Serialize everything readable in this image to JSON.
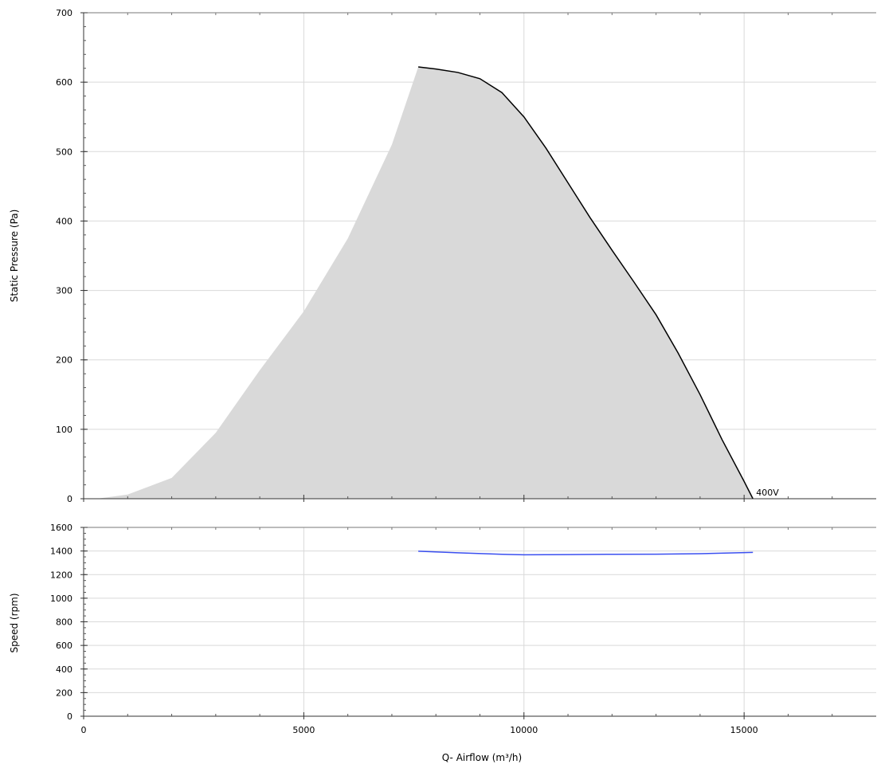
{
  "chart_data": [
    {
      "type": "area",
      "ylabel": "Static Pressure (Pa)",
      "xlabel": "",
      "xlim": [
        0,
        18000
      ],
      "ylim": [
        0,
        700
      ],
      "x_ticks": [
        0,
        5000,
        10000,
        15000
      ],
      "y_ticks": [
        0,
        100,
        200,
        300,
        400,
        500,
        600,
        700
      ],
      "grid": true,
      "colors": {
        "fill": "#d9d9d9",
        "curve": "#000000",
        "grid": "#d9d9d9"
      },
      "system_curve": {
        "x": [
          300,
          1000,
          2000,
          3000,
          4000,
          5000,
          6000,
          7000,
          7600
        ],
        "y": [
          0,
          6,
          30,
          95,
          185,
          270,
          375,
          510,
          622
        ]
      },
      "series": [
        {
          "name": "400V",
          "x": [
            7600,
            8000,
            8500,
            9000,
            9500,
            10000,
            10500,
            11000,
            11500,
            12000,
            12500,
            13000,
            13500,
            14000,
            14500,
            15000,
            15200
          ],
          "y": [
            622,
            619,
            614,
            605,
            585,
            550,
            505,
            455,
            405,
            358,
            312,
            265,
            210,
            150,
            85,
            25,
            0
          ]
        }
      ]
    },
    {
      "type": "line",
      "ylabel": "Speed (rpm)",
      "xlabel": "Q- Airflow (m³/h)",
      "xlim": [
        0,
        18000
      ],
      "ylim": [
        0,
        1600
      ],
      "x_ticks": [
        0,
        5000,
        10000,
        15000
      ],
      "y_ticks": [
        0,
        200,
        400,
        600,
        800,
        1000,
        1200,
        1400,
        1600
      ],
      "grid": true,
      "colors": {
        "line": "#3a4ff0",
        "grid": "#d9d9d9"
      },
      "series": [
        {
          "name": "",
          "x": [
            7600,
            8500,
            9500,
            10000,
            11000,
            12000,
            13000,
            14000,
            15200
          ],
          "y": [
            1398,
            1385,
            1372,
            1368,
            1370,
            1372,
            1373,
            1377,
            1388
          ]
        }
      ]
    }
  ]
}
